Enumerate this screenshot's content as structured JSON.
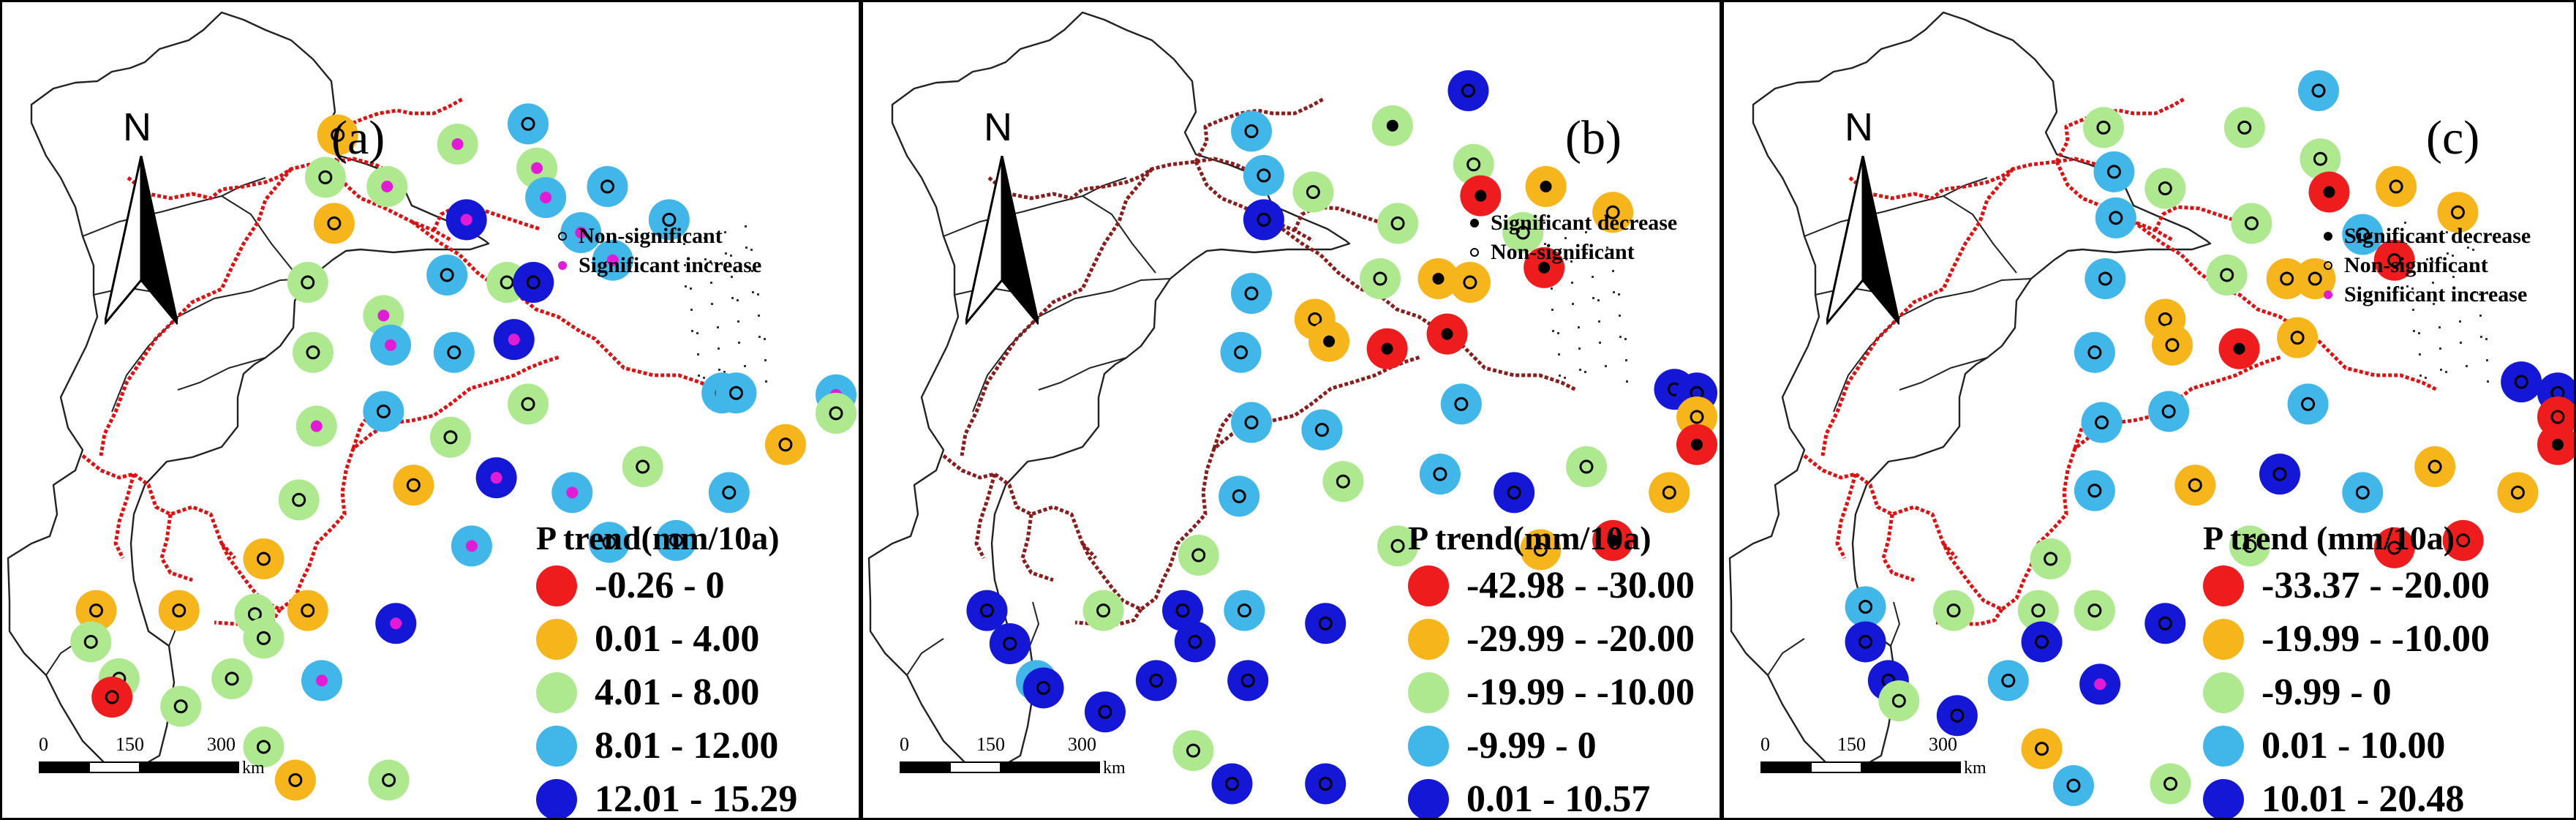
{
  "colors": {
    "boundary": "#222222",
    "red_border": "#e01010",
    "dark_border": "#7a1a1a",
    "map_fill": "#ffffff"
  },
  "scale": {
    "ticks": [
      "0",
      "150",
      "300"
    ],
    "unit": "km"
  },
  "north_arrow": {
    "label": "N"
  },
  "panels": [
    {
      "letter": "(a)",
      "legend_title": "P trend(mm/10a)",
      "legend": [
        {
          "label": "-0.26 - 0",
          "color": "#ee1c1c"
        },
        {
          "label": "0.01 - 4.00",
          "color": "#f6b51a"
        },
        {
          "label": "4.01 - 8.00",
          "color": "#aee98f"
        },
        {
          "label": "8.01 - 12.00",
          "color": "#41b6e9"
        },
        {
          "label": "12.01 - 15.29",
          "color": "#1417d6"
        }
      ],
      "significance": [
        {
          "label": "Non-significant",
          "type": "non-significant"
        },
        {
          "label": "Significant increase",
          "type": "increase"
        }
      ]
    },
    {
      "letter": "(b)",
      "legend_title": "P trend(mm/10a)",
      "legend": [
        {
          "label": "-42.98 - -30.00",
          "color": "#ee1c1c"
        },
        {
          "label": "-29.99 - -20.00",
          "color": "#f6b51a"
        },
        {
          "label": "-19.99 - -10.00",
          "color": "#aee98f"
        },
        {
          "label": "-9.99 - 0",
          "color": "#41b6e9"
        },
        {
          "label": "0.01 - 10.57",
          "color": "#1417d6"
        }
      ],
      "significance": [
        {
          "label": "Significant decrease",
          "type": "decrease"
        },
        {
          "label": "Non-significant",
          "type": "non-significant"
        }
      ]
    },
    {
      "letter": "(c)",
      "legend_title": "P trend (mm/10a)",
      "legend": [
        {
          "label": "-33.37 - -20.00",
          "color": "#ee1c1c"
        },
        {
          "label": "-19.99 - -10.00",
          "color": "#f6b51a"
        },
        {
          "label": "-9.99 - 0",
          "color": "#aee98f"
        },
        {
          "label": "0.01 - 10.00",
          "color": "#41b6e9"
        },
        {
          "label": "10.01 - 20.48",
          "color": "#1417d6"
        }
      ],
      "significance": [
        {
          "label": "Significant decrease",
          "type": "decrease"
        },
        {
          "label": "Non-significant",
          "type": "non-significant"
        },
        {
          "label": "Significant increase",
          "type": "increase"
        }
      ]
    }
  ]
}
